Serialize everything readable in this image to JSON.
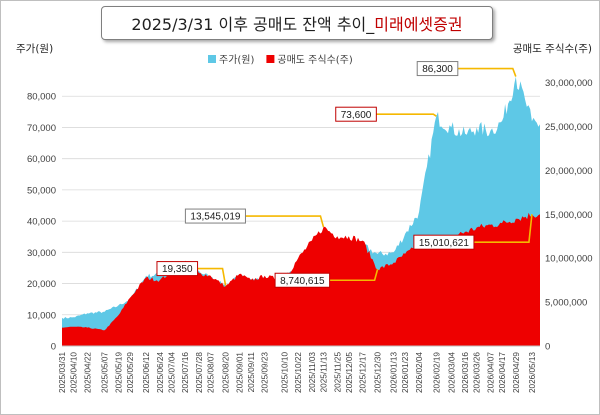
{
  "title": {
    "main": "2025/3/31 이후 공매도 잔액 추이_",
    "accent": "미래에셋증권"
  },
  "colors": {
    "price": "#5ec8e6",
    "short": "#ee0000",
    "callout_line": "#f5b800",
    "callout_border_red": "#c00000",
    "callout_border_gray": "#7f7f7f"
  },
  "chart_data": {
    "type": "area",
    "left_axis": {
      "title": "주가(원)",
      "range": [
        0,
        90000
      ],
      "ticks": [
        "0",
        "10,000",
        "20,000",
        "30,000",
        "40,000",
        "50,000",
        "60,000",
        "70,000",
        "80,000"
      ]
    },
    "right_axis": {
      "title": "공매도 주식수(주)",
      "range": [
        0,
        32000000
      ],
      "ticks": [
        "0",
        "5,000,000",
        "10,000,000",
        "15,000,000",
        "20,000,000",
        "25,000,000",
        "30,000,000"
      ]
    },
    "x_range": [
      "2025-03-31",
      "2026-05-20"
    ],
    "x_ticks": [
      "2025/03/31",
      "2025/04/10",
      "2025/04/22",
      "2025/05/07",
      "2025/05/19",
      "2025/05/29",
      "2025/06/12",
      "2025/06/24",
      "2025/07/04",
      "2025/07/16",
      "2025/07/28",
      "2025/08/07",
      "2025/08/20",
      "2025/09/01",
      "2025/09/11",
      "2025/09/23",
      "2025/10/10",
      "2025/10/22",
      "2025/11/03",
      "2025/11/13",
      "2025/11/25",
      "2025/12/05",
      "2025/12/17",
      "2025/12/30",
      "2026/01/13",
      "2026/01/23",
      "2026/02/04",
      "2026/02/19",
      "2026/03/04",
      "2026/03/16",
      "2026/03/26",
      "2026/04/07",
      "2026/04/17",
      "2026/04/29",
      "2026/05/13"
    ],
    "legend": {
      "placement": "top-center",
      "entries": [
        "주가(원)",
        "공매도 주식수(주)"
      ]
    },
    "series": [
      {
        "name": "주가(원)",
        "axis": "left",
        "points": [
          [
            "2025-03-31",
            9000
          ],
          [
            "2025-04-10",
            9200
          ],
          [
            "2025-04-22",
            10500
          ],
          [
            "2025-05-07",
            11000
          ],
          [
            "2025-05-19",
            13000
          ],
          [
            "2025-05-29",
            15000
          ],
          [
            "2025-06-12",
            22500
          ],
          [
            "2025-06-24",
            23000
          ],
          [
            "2025-07-04",
            24000
          ],
          [
            "2025-07-16",
            26500
          ],
          [
            "2025-07-28",
            24000
          ],
          [
            "2025-08-07",
            22000
          ],
          [
            "2025-08-20",
            19350
          ],
          [
            "2025-09-01",
            22500
          ],
          [
            "2025-09-11",
            21500
          ],
          [
            "2025-09-23",
            21500
          ],
          [
            "2025-10-10",
            22000
          ],
          [
            "2025-10-22",
            26000
          ],
          [
            "2025-11-03",
            30000
          ],
          [
            "2025-11-13",
            32000
          ],
          [
            "2025-11-25",
            30000
          ],
          [
            "2025-12-05",
            33000
          ],
          [
            "2025-12-17",
            32500
          ],
          [
            "2025-12-30",
            29500
          ],
          [
            "2026-01-13",
            30000
          ],
          [
            "2026-01-23",
            36000
          ],
          [
            "2026-02-04",
            43000
          ],
          [
            "2026-02-19",
            73600
          ],
          [
            "2026-03-04",
            70000
          ],
          [
            "2026-03-16",
            68000
          ],
          [
            "2026-03-26",
            70000
          ],
          [
            "2026-04-07",
            69000
          ],
          [
            "2026-04-17",
            72000
          ],
          [
            "2026-04-29",
            86300
          ],
          [
            "2026-05-07",
            79000
          ],
          [
            "2026-05-13",
            72000
          ],
          [
            "2026-05-20",
            71000
          ]
        ]
      },
      {
        "name": "공매도 주식수(주)",
        "axis": "right",
        "points": [
          [
            "2025-03-31",
            2100000
          ],
          [
            "2025-04-10",
            2200000
          ],
          [
            "2025-04-22",
            2100000
          ],
          [
            "2025-05-07",
            1800000
          ],
          [
            "2025-05-19",
            3500000
          ],
          [
            "2025-05-29",
            5500000
          ],
          [
            "2025-06-12",
            7800000
          ],
          [
            "2025-06-24",
            7500000
          ],
          [
            "2025-07-04",
            8500000
          ],
          [
            "2025-07-16",
            9700000
          ],
          [
            "2025-07-28",
            8300000
          ],
          [
            "2025-08-07",
            8000000
          ],
          [
            "2025-08-20",
            6800000
          ],
          [
            "2025-09-01",
            8200000
          ],
          [
            "2025-09-11",
            7500000
          ],
          [
            "2025-09-23",
            8000000
          ],
          [
            "2025-10-10",
            7500000
          ],
          [
            "2025-10-22",
            10000000
          ],
          [
            "2025-11-03",
            12000000
          ],
          [
            "2025-11-13",
            13545019
          ],
          [
            "2025-11-25",
            12500000
          ],
          [
            "2025-12-05",
            12500000
          ],
          [
            "2025-12-17",
            12000000
          ],
          [
            "2025-12-30",
            8740615
          ],
          [
            "2026-01-13",
            9500000
          ],
          [
            "2026-01-23",
            10500000
          ],
          [
            "2026-02-04",
            11500000
          ],
          [
            "2026-02-19",
            12000000
          ],
          [
            "2026-03-04",
            12500000
          ],
          [
            "2026-03-16",
            13000000
          ],
          [
            "2026-03-26",
            13500000
          ],
          [
            "2026-04-07",
            13800000
          ],
          [
            "2026-04-17",
            14000000
          ],
          [
            "2026-04-29",
            14500000
          ],
          [
            "2026-05-13",
            15010621
          ],
          [
            "2026-05-20",
            15010621
          ]
        ]
      }
    ],
    "annotations": [
      {
        "text": "86,300",
        "series": "주가(원)",
        "x": "2026-04-29",
        "y": 86300,
        "border": "gray"
      },
      {
        "text": "73,600",
        "series": "주가(원)",
        "x": "2026-02-19",
        "y": 73600,
        "border": "red"
      },
      {
        "text": "13,545,019",
        "series": "공매도 주식수(주)",
        "x": "2025-11-13",
        "y": 13545019,
        "border": "gray"
      },
      {
        "text": "19,350",
        "series": "주가(원)",
        "x": "2025-08-20",
        "y": 19350,
        "border": "red"
      },
      {
        "text": "8,740,615",
        "series": "공매도 주식수(주)",
        "x": "2025-12-30",
        "y": 8740615,
        "border": "red"
      },
      {
        "text": "15,010,621",
        "series": "공매도 주식수(주)",
        "x": "2026-05-13",
        "y": 15010621,
        "border": "red"
      }
    ]
  }
}
